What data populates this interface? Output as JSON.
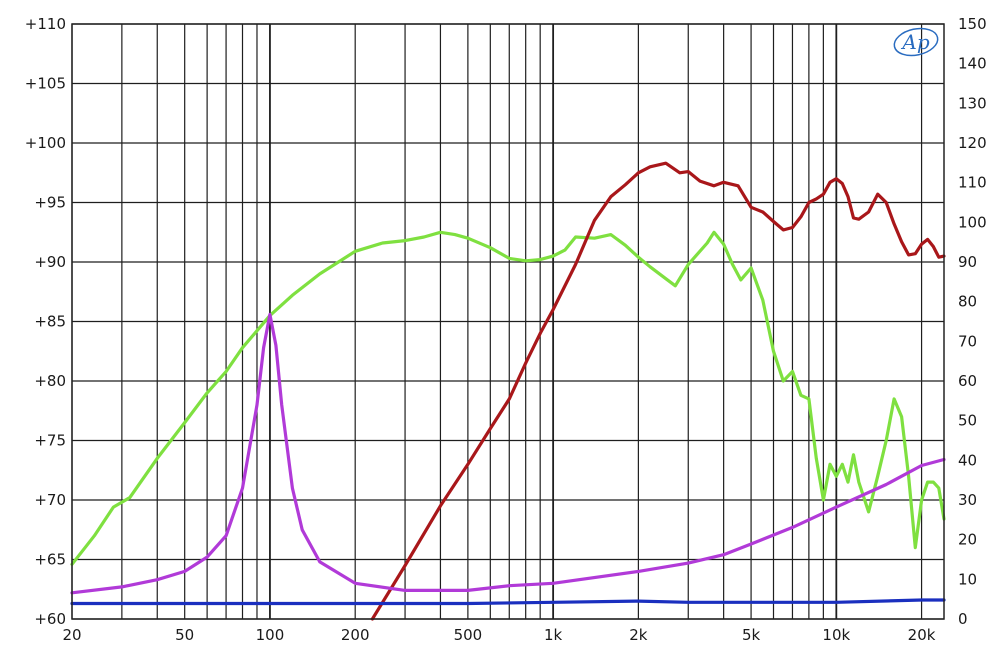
{
  "chart_data": {
    "type": "line",
    "logo": "Ap",
    "x_scale": "log",
    "xlim": [
      20,
      24000
    ],
    "ylim": [
      60,
      110
    ],
    "y2lim": [
      0,
      150
    ],
    "grid": true,
    "x_tick_labels": [
      {
        "value": 20,
        "label": "20"
      },
      {
        "value": 50,
        "label": "50"
      },
      {
        "value": 100,
        "label": "100"
      },
      {
        "value": 200,
        "label": "200"
      },
      {
        "value": 500,
        "label": "500"
      },
      {
        "value": 1000,
        "label": "1k"
      },
      {
        "value": 2000,
        "label": "2k"
      },
      {
        "value": 5000,
        "label": "5k"
      },
      {
        "value": 10000,
        "label": "10k"
      },
      {
        "value": 20000,
        "label": "20k"
      }
    ],
    "y_tick_labels": [
      {
        "value": 110,
        "label": "+110"
      },
      {
        "value": 105,
        "label": "+105"
      },
      {
        "value": 100,
        "label": "+100"
      },
      {
        "value": 95,
        "label": "+95"
      },
      {
        "value": 90,
        "label": "+90"
      },
      {
        "value": 85,
        "label": "+85"
      },
      {
        "value": 80,
        "label": "+80"
      },
      {
        "value": 75,
        "label": "+75"
      },
      {
        "value": 70,
        "label": "+70"
      },
      {
        "value": 65,
        "label": "+65"
      },
      {
        "value": 60,
        "label": "+60"
      }
    ],
    "y2_tick_labels": [
      {
        "value": 150,
        "label": "150"
      },
      {
        "value": 140,
        "label": "140"
      },
      {
        "value": 130,
        "label": "130"
      },
      {
        "value": 120,
        "label": "120"
      },
      {
        "value": 110,
        "label": "110"
      },
      {
        "value": 100,
        "label": "100"
      },
      {
        "value": 90,
        "label": "90"
      },
      {
        "value": 80,
        "label": "80"
      },
      {
        "value": 70,
        "label": "70"
      },
      {
        "value": 60,
        "label": "60"
      },
      {
        "value": 50,
        "label": "50"
      },
      {
        "value": 40,
        "label": "40"
      },
      {
        "value": 30,
        "label": "30"
      },
      {
        "value": 20,
        "label": "20"
      },
      {
        "value": 10,
        "label": "10"
      },
      {
        "value": 0,
        "label": "0"
      }
    ],
    "series": [
      {
        "axis": "left",
        "color": "#7fe040",
        "points": [
          [
            20,
            64.6
          ],
          [
            24,
            67.0
          ],
          [
            28,
            69.4
          ],
          [
            32,
            70.2
          ],
          [
            40,
            73.5
          ],
          [
            50,
            76.5
          ],
          [
            60,
            79.0
          ],
          [
            70,
            80.8
          ],
          [
            80,
            82.8
          ],
          [
            100,
            85.5
          ],
          [
            120,
            87.2
          ],
          [
            150,
            89.0
          ],
          [
            180,
            90.2
          ],
          [
            200,
            90.9
          ],
          [
            250,
            91.6
          ],
          [
            300,
            91.8
          ],
          [
            350,
            92.1
          ],
          [
            400,
            92.5
          ],
          [
            450,
            92.3
          ],
          [
            500,
            92.0
          ],
          [
            600,
            91.2
          ],
          [
            700,
            90.3
          ],
          [
            800,
            90.1
          ],
          [
            900,
            90.2
          ],
          [
            1000,
            90.5
          ],
          [
            1100,
            91.0
          ],
          [
            1200,
            92.1
          ],
          [
            1400,
            92.0
          ],
          [
            1600,
            92.3
          ],
          [
            1800,
            91.4
          ],
          [
            2000,
            90.4
          ],
          [
            2200,
            89.6
          ],
          [
            2500,
            88.6
          ],
          [
            2700,
            88.0
          ],
          [
            3000,
            89.8
          ],
          [
            3500,
            91.6
          ],
          [
            3700,
            92.5
          ],
          [
            4000,
            91.5
          ],
          [
            4300,
            89.8
          ],
          [
            4600,
            88.5
          ],
          [
            5000,
            89.5
          ],
          [
            5500,
            86.8
          ],
          [
            6000,
            82.5
          ],
          [
            6500,
            80.0
          ],
          [
            7000,
            80.8
          ],
          [
            7500,
            78.8
          ],
          [
            8000,
            78.5
          ],
          [
            8500,
            73.5
          ],
          [
            9000,
            70.0
          ],
          [
            9500,
            73.0
          ],
          [
            10000,
            72.0
          ],
          [
            10500,
            73.0
          ],
          [
            11000,
            71.5
          ],
          [
            11500,
            73.8
          ],
          [
            12000,
            71.5
          ],
          [
            13000,
            69.0
          ],
          [
            14000,
            72.0
          ],
          [
            15000,
            75.0
          ],
          [
            16000,
            78.5
          ],
          [
            17000,
            77.0
          ],
          [
            18000,
            72.0
          ],
          [
            19000,
            66.0
          ],
          [
            20000,
            70.0
          ],
          [
            21000,
            71.5
          ],
          [
            22000,
            71.5
          ],
          [
            23000,
            71.0
          ],
          [
            24000,
            68.4
          ]
        ]
      },
      {
        "axis": "left",
        "color": "#a9171a",
        "points": [
          [
            230,
            60.0
          ],
          [
            300,
            64.5
          ],
          [
            400,
            69.5
          ],
          [
            500,
            73.0
          ],
          [
            600,
            76.0
          ],
          [
            700,
            78.5
          ],
          [
            800,
            81.5
          ],
          [
            900,
            84.0
          ],
          [
            1000,
            86.0
          ],
          [
            1200,
            89.8
          ],
          [
            1400,
            93.5
          ],
          [
            1600,
            95.5
          ],
          [
            1800,
            96.5
          ],
          [
            2000,
            97.5
          ],
          [
            2200,
            98.0
          ],
          [
            2500,
            98.3
          ],
          [
            2800,
            97.5
          ],
          [
            3000,
            97.6
          ],
          [
            3300,
            96.8
          ],
          [
            3700,
            96.4
          ],
          [
            4000,
            96.7
          ],
          [
            4500,
            96.4
          ],
          [
            5000,
            94.6
          ],
          [
            5500,
            94.2
          ],
          [
            6000,
            93.4
          ],
          [
            6500,
            92.7
          ],
          [
            7000,
            92.9
          ],
          [
            7500,
            93.8
          ],
          [
            8000,
            95.0
          ],
          [
            8500,
            95.3
          ],
          [
            9000,
            95.7
          ],
          [
            9500,
            96.7
          ],
          [
            10000,
            97.0
          ],
          [
            10500,
            96.6
          ],
          [
            11000,
            95.5
          ],
          [
            11500,
            93.7
          ],
          [
            12000,
            93.6
          ],
          [
            13000,
            94.2
          ],
          [
            14000,
            95.7
          ],
          [
            15000,
            95.0
          ],
          [
            16000,
            93.2
          ],
          [
            17000,
            91.7
          ],
          [
            18000,
            90.6
          ],
          [
            19000,
            90.7
          ],
          [
            20000,
            91.5
          ],
          [
            21000,
            91.9
          ],
          [
            22000,
            91.3
          ],
          [
            23000,
            90.4
          ],
          [
            24000,
            90.5
          ]
        ]
      },
      {
        "axis": "left",
        "color": "#b13ad8",
        "points": [
          [
            20,
            62.2
          ],
          [
            30,
            62.7
          ],
          [
            40,
            63.3
          ],
          [
            50,
            64.0
          ],
          [
            60,
            65.2
          ],
          [
            70,
            67.0
          ],
          [
            80,
            71.0
          ],
          [
            90,
            78.0
          ],
          [
            95,
            82.8
          ],
          [
            100,
            85.6
          ],
          [
            105,
            83.0
          ],
          [
            110,
            78.0
          ],
          [
            120,
            71.0
          ],
          [
            130,
            67.5
          ],
          [
            150,
            64.8
          ],
          [
            200,
            63.0
          ],
          [
            300,
            62.4
          ],
          [
            500,
            62.4
          ],
          [
            700,
            62.8
          ],
          [
            1000,
            63.0
          ],
          [
            2000,
            64.0
          ],
          [
            3000,
            64.7
          ],
          [
            4000,
            65.4
          ],
          [
            5000,
            66.3
          ],
          [
            7000,
            67.7
          ],
          [
            10000,
            69.4
          ],
          [
            15000,
            71.3
          ],
          [
            20000,
            72.9
          ],
          [
            24000,
            73.4
          ]
        ]
      },
      {
        "axis": "left",
        "color": "#1a2fbf",
        "points": [
          [
            20,
            61.3
          ],
          [
            500,
            61.3
          ],
          [
            1000,
            61.4
          ],
          [
            2000,
            61.5
          ],
          [
            3000,
            61.4
          ],
          [
            10000,
            61.4
          ],
          [
            20000,
            61.6
          ],
          [
            24000,
            61.6
          ]
        ]
      }
    ]
  }
}
